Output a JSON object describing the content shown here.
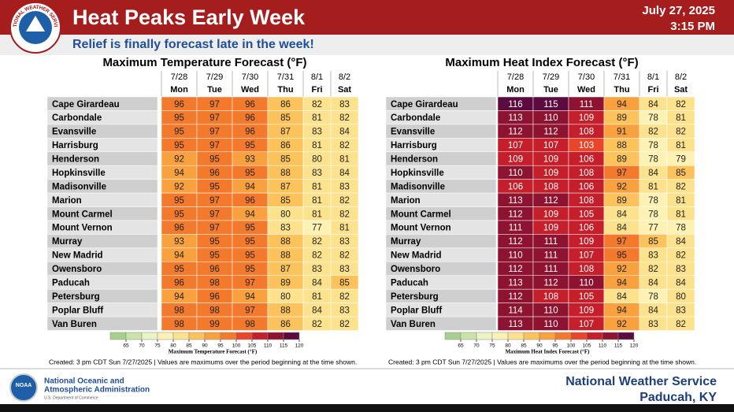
{
  "header": {
    "title": "Heat Peaks Early Week",
    "subtitle": "Relief is finally forecast late in the week!",
    "date": "July 27, 2025",
    "time": "3:15 PM",
    "logo_text": "NATIONAL WEATHER SERVICE"
  },
  "days": [
    {
      "date": "7/28",
      "day": "Mon"
    },
    {
      "date": "7/29",
      "day": "Tue"
    },
    {
      "date": "7/30",
      "day": "Wed"
    },
    {
      "date": "7/31",
      "day": "Thu"
    },
    {
      "date": "8/1",
      "day": "Fri"
    },
    {
      "date": "8/2",
      "day": "Sat"
    }
  ],
  "locations": [
    "Cape Girardeau",
    "Carbondale",
    "Evansville",
    "Harrisburg",
    "Henderson",
    "Hopkinsville",
    "Madisonville",
    "Marion",
    "Mount Carmel",
    "Mount Vernon",
    "Murray",
    "New Madrid",
    "Owensboro",
    "Paducah",
    "Petersburg",
    "Poplar Bluff",
    "Van Buren"
  ],
  "panels": [
    {
      "title": "Maximum Temperature Forecast (°F)",
      "legend_title": "Maximum Temperature Forecast (°F)",
      "rows": [
        [
          96,
          97,
          96,
          86,
          82,
          83
        ],
        [
          95,
          97,
          96,
          85,
          81,
          82
        ],
        [
          95,
          97,
          96,
          87,
          83,
          84
        ],
        [
          95,
          97,
          95,
          86,
          81,
          82
        ],
        [
          92,
          95,
          93,
          85,
          80,
          81
        ],
        [
          94,
          96,
          95,
          88,
          83,
          84
        ],
        [
          92,
          95,
          94,
          87,
          81,
          83
        ],
        [
          95,
          97,
          96,
          85,
          81,
          82
        ],
        [
          95,
          97,
          94,
          80,
          81,
          82
        ],
        [
          96,
          97,
          95,
          83,
          77,
          81
        ],
        [
          93,
          95,
          95,
          88,
          82,
          83
        ],
        [
          94,
          95,
          95,
          88,
          82,
          82
        ],
        [
          95,
          96,
          95,
          87,
          83,
          83
        ],
        [
          96,
          98,
          97,
          89,
          84,
          85
        ],
        [
          94,
          96,
          94,
          80,
          81,
          82
        ],
        [
          98,
          98,
          97,
          88,
          84,
          83
        ],
        [
          98,
          99,
          98,
          86,
          82,
          82
        ]
      ]
    },
    {
      "title": "Maximum Heat Index Forecast (°F)",
      "legend_title": "Maximum Heat Index Forecast (°F)",
      "rows": [
        [
          116,
          115,
          111,
          94,
          84,
          82
        ],
        [
          113,
          110,
          109,
          89,
          78,
          81
        ],
        [
          112,
          112,
          108,
          91,
          82,
          82
        ],
        [
          107,
          107,
          103,
          88,
          78,
          81
        ],
        [
          109,
          109,
          106,
          89,
          78,
          79
        ],
        [
          110,
          109,
          108,
          97,
          84,
          85
        ],
        [
          106,
          108,
          106,
          92,
          81,
          82
        ],
        [
          113,
          112,
          108,
          89,
          78,
          81
        ],
        [
          112,
          109,
          105,
          84,
          78,
          81
        ],
        [
          111,
          109,
          106,
          84,
          77,
          78
        ],
        [
          112,
          111,
          109,
          97,
          85,
          84
        ],
        [
          110,
          111,
          107,
          95,
          83,
          82
        ],
        [
          112,
          111,
          108,
          92,
          82,
          83
        ],
        [
          113,
          112,
          110,
          94,
          84,
          84
        ],
        [
          112,
          108,
          105,
          84,
          78,
          80
        ],
        [
          114,
          110,
          109,
          94,
          84,
          83
        ],
        [
          113,
          110,
          107,
          92,
          83,
          82
        ]
      ]
    }
  ],
  "color_scale": {
    "ticks": [
      65,
      70,
      75,
      80,
      85,
      90,
      95,
      100,
      105,
      110,
      115,
      120
    ],
    "colors": [
      "#a8d08d",
      "#c9e4a7",
      "#eaf3c6",
      "#fdf2b3",
      "#fde28e",
      "#fcc35c",
      "#f9a03f",
      "#f37a2c",
      "#e8452b",
      "#c41f2a",
      "#8e1330",
      "#5c0b3e"
    ]
  },
  "footnote": "Created: 3 pm CDT Sun 7/27/2025  |  Values are maximums over the period beginning at the time shown.",
  "footer": {
    "logo": "NOAA",
    "agency": [
      "National Oceanic and",
      "Atmospheric Administration"
    ],
    "department": "U.S. Department of Commerce",
    "office": "National Weather Service",
    "location": "Paducah, KY"
  }
}
